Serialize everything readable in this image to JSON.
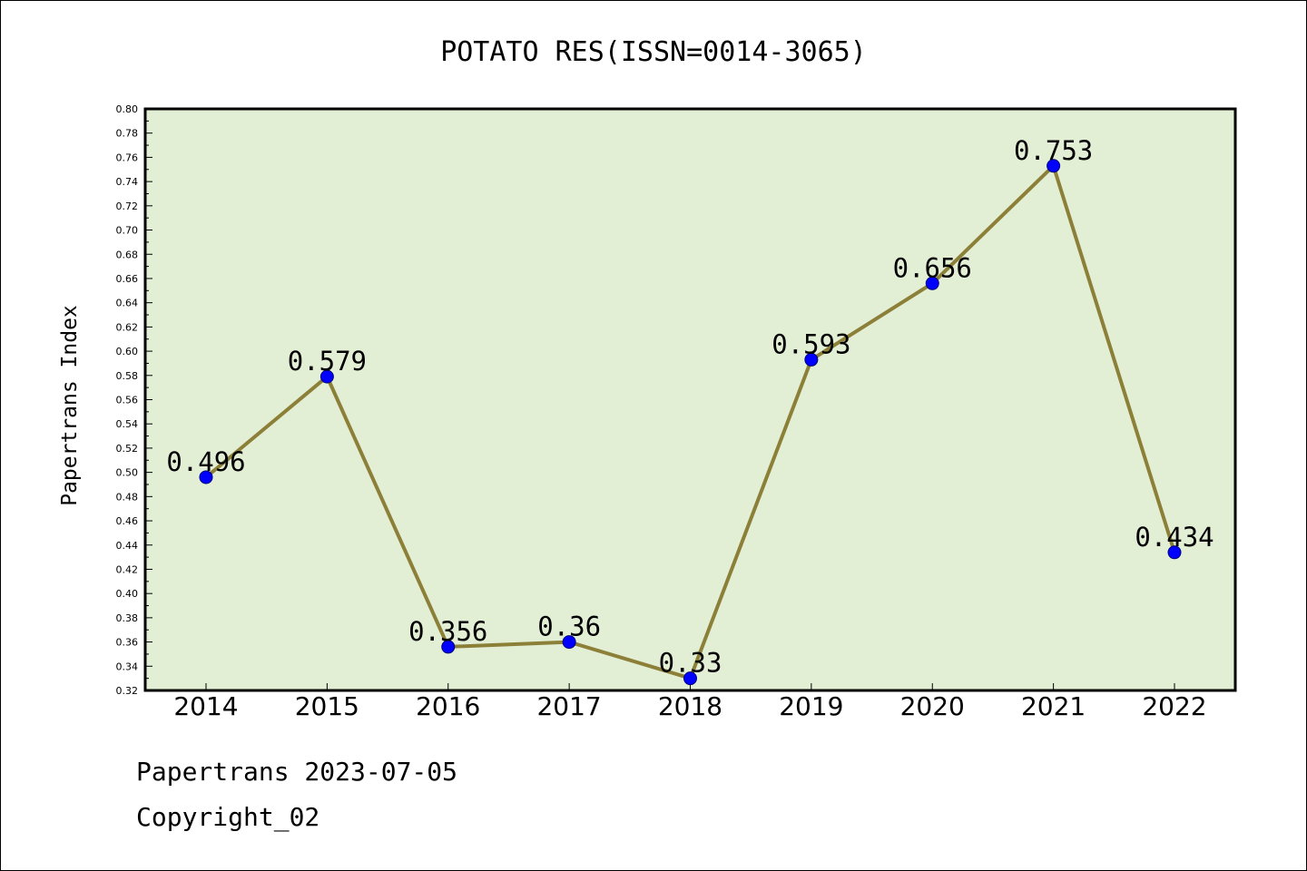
{
  "chart_data": {
    "type": "line",
    "title": "POTATO RES(ISSN=0014-3065)",
    "xlabel": "",
    "ylabel": "Papertrans Index",
    "categories": [
      "2014",
      "2015",
      "2016",
      "2017",
      "2018",
      "2019",
      "2020",
      "2021",
      "2022"
    ],
    "series": [
      {
        "values": [
          0.496,
          0.579,
          0.356,
          0.36,
          0.33,
          0.593,
          0.656,
          0.753,
          0.434
        ],
        "labels": [
          "0.496",
          "0.579",
          "0.356",
          "0.36",
          "0.33",
          "0.593",
          "0.656",
          "0.753",
          "0.434"
        ],
        "line_color": "#8c7f38",
        "marker_color": "#0000ff"
      }
    ],
    "ylim": [
      0.32,
      0.8
    ],
    "yticks": [
      "0.32",
      "0.34",
      "0.36",
      "0.38",
      "0.40",
      "0.42",
      "0.44",
      "0.46",
      "0.48",
      "0.50",
      "0.52",
      "0.54",
      "0.56",
      "0.58",
      "0.60",
      "0.62",
      "0.64",
      "0.66",
      "0.68",
      "0.70",
      "0.72",
      "0.74",
      "0.76",
      "0.78",
      "0.80"
    ],
    "grid": false,
    "plot_background": "#e2efd5"
  },
  "footer": {
    "line1": "Papertrans 2023-07-05",
    "line2": "Copyright_02"
  }
}
